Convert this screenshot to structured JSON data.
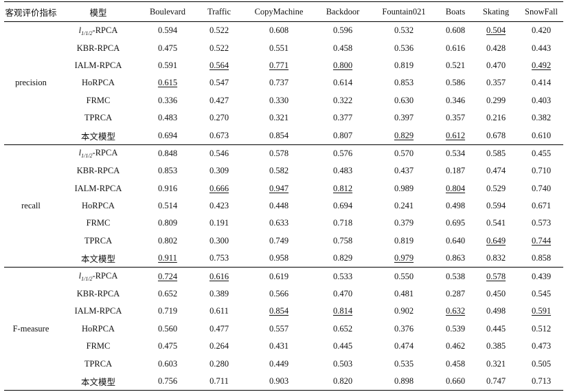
{
  "table": {
    "headers": [
      "客观评价指标",
      "模型",
      "Boulevard",
      "Traffic",
      "CopyMachine",
      "Backdoor",
      "Fountain021",
      "Boats",
      "Skating",
      "SnowFall"
    ],
    "model_prefix": "l",
    "model_sub": "1/1/2",
    "groups": [
      {
        "metric": "precision",
        "rows": [
          {
            "model": "-RPCA",
            "values": [
              "0.594",
              "0.522",
              "0.608",
              "0.596",
              "0.532",
              "0.608",
              "0.504",
              "0.420"
            ]
          },
          {
            "model": "KBR-RPCA",
            "values": [
              "0.475",
              "0.522",
              "0.551",
              "0.458",
              "0.536",
              "0.616",
              "0.428",
              "0.443"
            ]
          },
          {
            "model": "IALM-RPCA",
            "values": [
              "0.591",
              "0.564",
              "0.771",
              "0.800",
              "0.819",
              "0.521",
              "0.470",
              "0.492"
            ]
          },
          {
            "model": "HoRPCA",
            "values": [
              "0.615",
              "0.547",
              "0.737",
              "0.614",
              "0.853",
              "0.586",
              "0.357",
              "0.414"
            ]
          },
          {
            "model": "FRMC",
            "values": [
              "0.336",
              "0.427",
              "0.330",
              "0.322",
              "0.630",
              "0.346",
              "0.299",
              "0.403"
            ]
          },
          {
            "model": "TPRCA",
            "values": [
              "0.483",
              "0.270",
              "0.321",
              "0.377",
              "0.397",
              "0.357",
              "0.216",
              "0.382"
            ]
          },
          {
            "model": "本文模型",
            "values": [
              "0.694",
              "0.673",
              "0.854",
              "0.807",
              "0.829",
              "0.612",
              "0.678",
              "0.610"
            ]
          }
        ]
      },
      {
        "metric": "recall",
        "rows": [
          {
            "model": "-RPCA",
            "values": [
              "0.848",
              "0.546",
              "0.578",
              "0.576",
              "0.570",
              "0.534",
              "0.585",
              "0.455"
            ]
          },
          {
            "model": "KBR-RPCA",
            "values": [
              "0.853",
              "0.309",
              "0.582",
              "0.483",
              "0.437",
              "0.187",
              "0.474",
              "0.710"
            ]
          },
          {
            "model": "IALM-RPCA",
            "values": [
              "0.916",
              "0.666",
              "0.947",
              "0.812",
              "0.989",
              "0.804",
              "0.529",
              "0.740"
            ]
          },
          {
            "model": "HoRPCA",
            "values": [
              "0.514",
              "0.423",
              "0.448",
              "0.694",
              "0.241",
              "0.498",
              "0.594",
              "0.671"
            ]
          },
          {
            "model": "FRMC",
            "values": [
              "0.809",
              "0.191",
              "0.633",
              "0.718",
              "0.379",
              "0.695",
              "0.541",
              "0.573"
            ]
          },
          {
            "model": "TPRCA",
            "values": [
              "0.802",
              "0.300",
              "0.749",
              "0.758",
              "0.819",
              "0.640",
              "0.649",
              "0.744"
            ]
          },
          {
            "model": "本文模型",
            "values": [
              "0.911",
              "0.753",
              "0.958",
              "0.829",
              "0.979",
              "0.863",
              "0.832",
              "0.858"
            ]
          }
        ]
      },
      {
        "metric": "F-measure",
        "rows": [
          {
            "model": "-RPCA",
            "values": [
              "0.724",
              "0.616",
              "0.619",
              "0.533",
              "0.550",
              "0.538",
              "0.578",
              "0.439"
            ]
          },
          {
            "model": "KBR-RPCA",
            "values": [
              "0.652",
              "0.389",
              "0.566",
              "0.470",
              "0.481",
              "0.287",
              "0.450",
              "0.545"
            ]
          },
          {
            "model": "IALM-RPCA",
            "values": [
              "0.719",
              "0.611",
              "0.854",
              "0.814",
              "0.902",
              "0.632",
              "0.498",
              "0.591"
            ]
          },
          {
            "model": "HoRPCA",
            "values": [
              "0.560",
              "0.477",
              "0.557",
              "0.652",
              "0.376",
              "0.539",
              "0.445",
              "0.512"
            ]
          },
          {
            "model": "FRMC",
            "values": [
              "0.475",
              "0.264",
              "0.431",
              "0.445",
              "0.474",
              "0.462",
              "0.385",
              "0.473"
            ]
          },
          {
            "model": "TPRCA",
            "values": [
              "0.603",
              "0.280",
              "0.449",
              "0.503",
              "0.535",
              "0.458",
              "0.321",
              "0.505"
            ]
          },
          {
            "model": "本文模型",
            "values": [
              "0.756",
              "0.711",
              "0.903",
              "0.820",
              "0.898",
              "0.660",
              "0.747",
              "0.713"
            ]
          }
        ]
      }
    ]
  }
}
